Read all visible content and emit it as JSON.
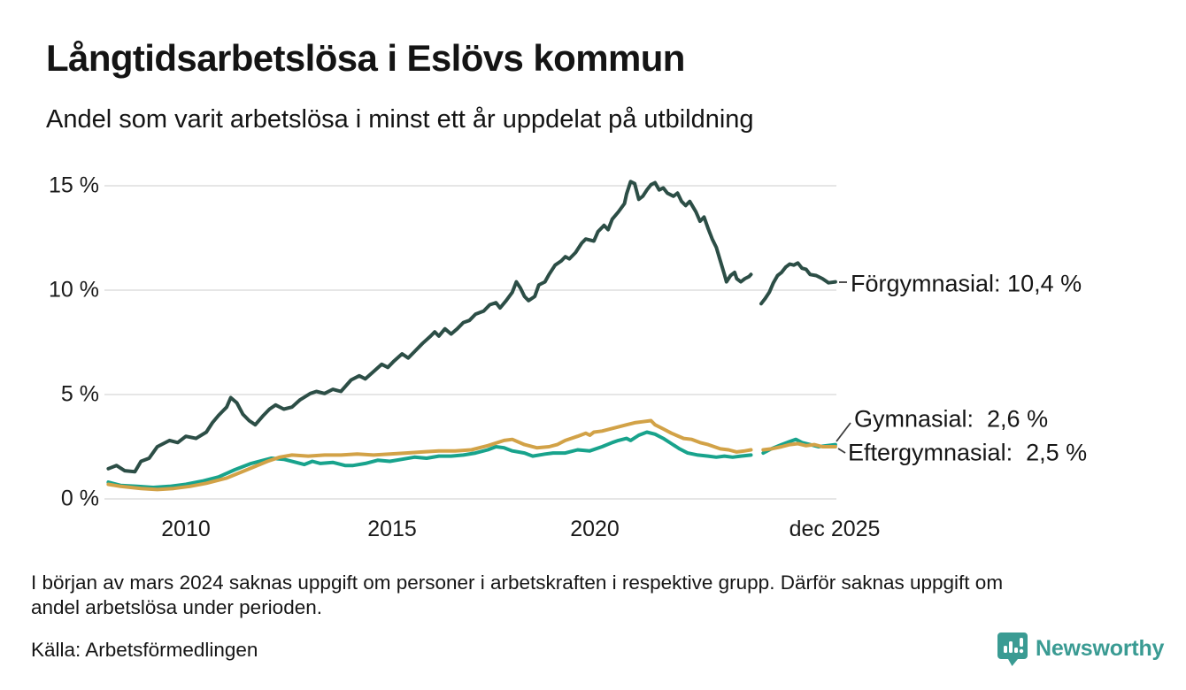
{
  "title": "Långtidsarbetslösa i Eslövs kommun",
  "subtitle": "Andel som varit arbetslösa i minst ett år uppdelat på utbildning",
  "footnote_lines": [
    "I början av mars 2024 saknas uppgift om personer i arbetskraften i respektive grupp. Därför saknas uppgift om",
    "andel arbetslösa under perioden."
  ],
  "source": "Källa: Arbetsförmedlingen",
  "branding": {
    "name": "Newsworthy",
    "color": "#3a9b93",
    "icon": "bar-chart-speech-bubble-icon"
  },
  "colors": {
    "grid": "#e6e6e6",
    "text": "#161616",
    "forgymnasial": "#2c4e46",
    "gymnasial": "#18a38c",
    "eftergymnasial": "#d2a247"
  },
  "chart_data": {
    "type": "line",
    "title": "Långtidsarbetslösa i Eslövs kommun",
    "subtitle": "Andel som varit arbetslösa i minst ett år uppdelat på utbildning",
    "xlabel": "",
    "ylabel": "",
    "xlim": [
      2008.1,
      2025.95
    ],
    "ylim": [
      0,
      15.5
    ],
    "grid": "horizontal",
    "legend_position": "end-of-line-labels",
    "gap_period": "late 2023 – early 2024 (data missing)",
    "y_ticks": [
      {
        "label": "15 %",
        "value": 15
      },
      {
        "label": "10 %",
        "value": 10
      },
      {
        "label": "5 %",
        "value": 5
      },
      {
        "label": "0 %",
        "value": 0
      }
    ],
    "x_ticks": [
      {
        "label": "2010",
        "year": 2010
      },
      {
        "label": "2015",
        "year": 2015
      },
      {
        "label": "2020",
        "year": 2020
      },
      {
        "label": "dec 2025",
        "year": 2025.92
      }
    ],
    "series": [
      {
        "name": "Förgymnasial",
        "end_label": "Förgymnasial: 10,4 %",
        "last_value": 10.4,
        "color": "#2c4e46",
        "points": [
          [
            2008.1,
            1.45
          ],
          [
            2008.3,
            1.6
          ],
          [
            2008.5,
            1.35
          ],
          [
            2008.75,
            1.3
          ],
          [
            2008.9,
            1.8
          ],
          [
            2009.1,
            1.95
          ],
          [
            2009.3,
            2.5
          ],
          [
            2009.6,
            2.8
          ],
          [
            2009.8,
            2.7
          ],
          [
            2010.0,
            3.0
          ],
          [
            2010.25,
            2.9
          ],
          [
            2010.5,
            3.2
          ],
          [
            2010.65,
            3.65
          ],
          [
            2010.8,
            4.0
          ],
          [
            2011.0,
            4.4
          ],
          [
            2011.1,
            4.85
          ],
          [
            2011.25,
            4.6
          ],
          [
            2011.4,
            4.05
          ],
          [
            2011.55,
            3.75
          ],
          [
            2011.7,
            3.55
          ],
          [
            2011.9,
            4.0
          ],
          [
            2012.05,
            4.3
          ],
          [
            2012.2,
            4.5
          ],
          [
            2012.4,
            4.3
          ],
          [
            2012.6,
            4.4
          ],
          [
            2012.8,
            4.75
          ],
          [
            2013.05,
            5.05
          ],
          [
            2013.2,
            5.15
          ],
          [
            2013.4,
            5.05
          ],
          [
            2013.6,
            5.25
          ],
          [
            2013.8,
            5.15
          ],
          [
            2014.05,
            5.7
          ],
          [
            2014.25,
            5.9
          ],
          [
            2014.4,
            5.75
          ],
          [
            2014.6,
            6.1
          ],
          [
            2014.8,
            6.45
          ],
          [
            2014.95,
            6.3
          ],
          [
            2015.1,
            6.6
          ],
          [
            2015.3,
            6.95
          ],
          [
            2015.45,
            6.75
          ],
          [
            2015.6,
            7.05
          ],
          [
            2015.8,
            7.45
          ],
          [
            2016.0,
            7.8
          ],
          [
            2016.1,
            8.0
          ],
          [
            2016.2,
            7.8
          ],
          [
            2016.35,
            8.15
          ],
          [
            2016.5,
            7.9
          ],
          [
            2016.65,
            8.15
          ],
          [
            2016.8,
            8.45
          ],
          [
            2016.95,
            8.55
          ],
          [
            2017.1,
            8.85
          ],
          [
            2017.3,
            9.0
          ],
          [
            2017.45,
            9.3
          ],
          [
            2017.6,
            9.4
          ],
          [
            2017.7,
            9.15
          ],
          [
            2017.85,
            9.5
          ],
          [
            2018.0,
            9.9
          ],
          [
            2018.1,
            10.4
          ],
          [
            2018.2,
            10.1
          ],
          [
            2018.3,
            9.7
          ],
          [
            2018.4,
            9.5
          ],
          [
            2018.55,
            9.7
          ],
          [
            2018.65,
            10.25
          ],
          [
            2018.8,
            10.4
          ],
          [
            2018.9,
            10.75
          ],
          [
            2019.05,
            11.2
          ],
          [
            2019.2,
            11.4
          ],
          [
            2019.3,
            11.6
          ],
          [
            2019.4,
            11.5
          ],
          [
            2019.55,
            11.8
          ],
          [
            2019.7,
            12.25
          ],
          [
            2019.8,
            12.45
          ],
          [
            2020.0,
            12.35
          ],
          [
            2020.1,
            12.8
          ],
          [
            2020.25,
            13.1
          ],
          [
            2020.35,
            12.9
          ],
          [
            2020.45,
            13.4
          ],
          [
            2020.6,
            13.75
          ],
          [
            2020.75,
            14.15
          ],
          [
            2020.8,
            14.6
          ],
          [
            2020.9,
            15.2
          ],
          [
            2021.0,
            15.1
          ],
          [
            2021.1,
            14.35
          ],
          [
            2021.2,
            14.5
          ],
          [
            2021.3,
            14.8
          ],
          [
            2021.4,
            15.05
          ],
          [
            2021.5,
            15.15
          ],
          [
            2021.6,
            14.8
          ],
          [
            2021.7,
            14.9
          ],
          [
            2021.8,
            14.65
          ],
          [
            2021.95,
            14.5
          ],
          [
            2022.05,
            14.65
          ],
          [
            2022.15,
            14.25
          ],
          [
            2022.25,
            14.05
          ],
          [
            2022.35,
            14.25
          ],
          [
            2022.5,
            13.75
          ],
          [
            2022.6,
            13.3
          ],
          [
            2022.7,
            13.5
          ],
          [
            2022.8,
            12.95
          ],
          [
            2022.9,
            12.45
          ],
          [
            2023.0,
            12.05
          ],
          [
            2023.1,
            11.4
          ],
          [
            2023.2,
            10.75
          ],
          [
            2023.25,
            10.4
          ],
          [
            2023.35,
            10.7
          ],
          [
            2023.45,
            10.85
          ],
          [
            2023.5,
            10.55
          ],
          [
            2023.6,
            10.4
          ],
          [
            2023.7,
            10.55
          ],
          [
            2023.8,
            10.65
          ],
          [
            2023.85,
            10.75
          ],
          null,
          [
            2024.1,
            9.35
          ],
          [
            2024.2,
            9.6
          ],
          [
            2024.3,
            9.9
          ],
          [
            2024.4,
            10.35
          ],
          [
            2024.5,
            10.7
          ],
          [
            2024.6,
            10.85
          ],
          [
            2024.7,
            11.1
          ],
          [
            2024.8,
            11.25
          ],
          [
            2024.9,
            11.2
          ],
          [
            2025.0,
            11.3
          ],
          [
            2025.1,
            11.05
          ],
          [
            2025.2,
            11.0
          ],
          [
            2025.3,
            10.75
          ],
          [
            2025.45,
            10.7
          ],
          [
            2025.6,
            10.55
          ],
          [
            2025.75,
            10.35
          ],
          [
            2025.92,
            10.4
          ]
        ]
      },
      {
        "name": "Gymnasial",
        "end_label": "Gymnasial:  2,6 %",
        "last_value": 2.6,
        "color": "#18a38c",
        "points": [
          [
            2008.1,
            0.8
          ],
          [
            2008.4,
            0.65
          ],
          [
            2008.8,
            0.6
          ],
          [
            2009.2,
            0.55
          ],
          [
            2009.6,
            0.6
          ],
          [
            2010.0,
            0.7
          ],
          [
            2010.4,
            0.85
          ],
          [
            2010.8,
            1.05
          ],
          [
            2011.2,
            1.4
          ],
          [
            2011.6,
            1.7
          ],
          [
            2011.9,
            1.85
          ],
          [
            2012.1,
            1.95
          ],
          [
            2012.4,
            1.9
          ],
          [
            2012.7,
            1.75
          ],
          [
            2012.9,
            1.65
          ],
          [
            2013.1,
            1.8
          ],
          [
            2013.3,
            1.7
          ],
          [
            2013.6,
            1.75
          ],
          [
            2013.9,
            1.6
          ],
          [
            2014.1,
            1.6
          ],
          [
            2014.4,
            1.7
          ],
          [
            2014.7,
            1.85
          ],
          [
            2015.0,
            1.8
          ],
          [
            2015.3,
            1.9
          ],
          [
            2015.6,
            2.0
          ],
          [
            2015.9,
            1.95
          ],
          [
            2016.2,
            2.05
          ],
          [
            2016.5,
            2.05
          ],
          [
            2016.8,
            2.1
          ],
          [
            2017.1,
            2.2
          ],
          [
            2017.4,
            2.35
          ],
          [
            2017.6,
            2.5
          ],
          [
            2017.8,
            2.45
          ],
          [
            2018.0,
            2.3
          ],
          [
            2018.3,
            2.2
          ],
          [
            2018.5,
            2.05
          ],
          [
            2018.8,
            2.15
          ],
          [
            2019.0,
            2.2
          ],
          [
            2019.3,
            2.2
          ],
          [
            2019.6,
            2.35
          ],
          [
            2019.9,
            2.3
          ],
          [
            2020.2,
            2.5
          ],
          [
            2020.45,
            2.7
          ],
          [
            2020.6,
            2.8
          ],
          [
            2020.8,
            2.9
          ],
          [
            2020.9,
            2.8
          ],
          [
            2021.1,
            3.05
          ],
          [
            2021.3,
            3.2
          ],
          [
            2021.5,
            3.1
          ],
          [
            2021.7,
            2.9
          ],
          [
            2021.9,
            2.65
          ],
          [
            2022.1,
            2.4
          ],
          [
            2022.3,
            2.2
          ],
          [
            2022.55,
            2.1
          ],
          [
            2022.8,
            2.05
          ],
          [
            2023.0,
            2.0
          ],
          [
            2023.2,
            2.05
          ],
          [
            2023.4,
            2.0
          ],
          [
            2023.6,
            2.05
          ],
          [
            2023.85,
            2.1
          ],
          null,
          [
            2024.15,
            2.2
          ],
          [
            2024.35,
            2.4
          ],
          [
            2024.6,
            2.6
          ],
          [
            2024.8,
            2.75
          ],
          [
            2024.95,
            2.85
          ],
          [
            2025.1,
            2.7
          ],
          [
            2025.3,
            2.6
          ],
          [
            2025.5,
            2.5
          ],
          [
            2025.7,
            2.55
          ],
          [
            2025.92,
            2.6
          ]
        ]
      },
      {
        "name": "Eftergymnasial",
        "end_label": "Eftergymnasial:  2,5 %",
        "last_value": 2.5,
        "color": "#d2a247",
        "points": [
          [
            2008.1,
            0.7
          ],
          [
            2008.4,
            0.6
          ],
          [
            2008.9,
            0.5
          ],
          [
            2009.3,
            0.45
          ],
          [
            2009.7,
            0.5
          ],
          [
            2010.1,
            0.6
          ],
          [
            2010.5,
            0.75
          ],
          [
            2011.0,
            1.0
          ],
          [
            2011.5,
            1.4
          ],
          [
            2012.0,
            1.8
          ],
          [
            2012.3,
            2.0
          ],
          [
            2012.6,
            2.1
          ],
          [
            2013.0,
            2.05
          ],
          [
            2013.4,
            2.1
          ],
          [
            2013.8,
            2.1
          ],
          [
            2014.2,
            2.15
          ],
          [
            2014.6,
            2.1
          ],
          [
            2015.0,
            2.15
          ],
          [
            2015.4,
            2.2
          ],
          [
            2015.8,
            2.25
          ],
          [
            2016.2,
            2.3
          ],
          [
            2016.6,
            2.3
          ],
          [
            2017.0,
            2.35
          ],
          [
            2017.4,
            2.55
          ],
          [
            2017.8,
            2.8
          ],
          [
            2018.0,
            2.85
          ],
          [
            2018.3,
            2.6
          ],
          [
            2018.6,
            2.45
          ],
          [
            2018.9,
            2.5
          ],
          [
            2019.1,
            2.6
          ],
          [
            2019.3,
            2.8
          ],
          [
            2019.6,
            3.0
          ],
          [
            2019.8,
            3.15
          ],
          [
            2019.9,
            3.05
          ],
          [
            2020.0,
            3.2
          ],
          [
            2020.2,
            3.25
          ],
          [
            2020.4,
            3.35
          ],
          [
            2020.6,
            3.45
          ],
          [
            2020.8,
            3.55
          ],
          [
            2021.0,
            3.65
          ],
          [
            2021.2,
            3.7
          ],
          [
            2021.4,
            3.75
          ],
          [
            2021.5,
            3.55
          ],
          [
            2021.7,
            3.35
          ],
          [
            2021.9,
            3.15
          ],
          [
            2022.2,
            2.9
          ],
          [
            2022.4,
            2.85
          ],
          [
            2022.6,
            2.7
          ],
          [
            2022.8,
            2.6
          ],
          [
            2023.1,
            2.4
          ],
          [
            2023.3,
            2.35
          ],
          [
            2023.5,
            2.25
          ],
          [
            2023.7,
            2.3
          ],
          [
            2023.85,
            2.35
          ],
          null,
          [
            2024.15,
            2.35
          ],
          [
            2024.35,
            2.4
          ],
          [
            2024.6,
            2.5
          ],
          [
            2024.8,
            2.6
          ],
          [
            2025.0,
            2.65
          ],
          [
            2025.2,
            2.55
          ],
          [
            2025.4,
            2.6
          ],
          [
            2025.6,
            2.5
          ],
          [
            2025.92,
            2.5
          ]
        ]
      }
    ]
  }
}
